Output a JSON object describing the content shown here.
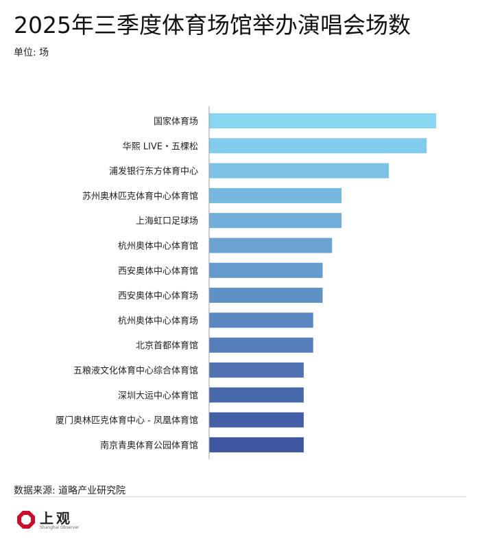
{
  "title": "2025年三季度体育场馆举办演唱会场数",
  "unit_label": "单位: 场",
  "source": "数据来源: 道略产业研究院",
  "logo": {
    "name": "上观",
    "sub": "Shanghai Observer",
    "colors": [
      "#c8102e",
      "#e0e0e0"
    ]
  },
  "chart_data": {
    "type": "bar",
    "orientation": "horizontal",
    "categories": [
      "国家体育场",
      "华熙 LIVE・五棵松",
      "浦发银行东方体育中心",
      "苏州奥林匹克体育中心体育馆",
      "上海虹口足球场",
      "杭州奥体中心体育馆",
      "西安奥体中心体育馆",
      "西安奥体中心体育场",
      "杭州奥体中心体育场",
      "北京首都体育馆",
      "五粮液文化体育中心综合体育馆",
      "深圳大运中心体育馆",
      "厦门奥林匹克体育中心 - 凤凰体育馆",
      "南京青奥体育公园体育馆"
    ],
    "values": [
      24,
      23,
      19,
      14,
      14,
      13,
      12,
      12,
      11,
      11,
      10,
      10,
      10,
      10
    ],
    "xlim": [
      0,
      24
    ],
    "grid": false,
    "colors": {
      "start": "#87d6f2",
      "end": "#3e55a0"
    }
  }
}
